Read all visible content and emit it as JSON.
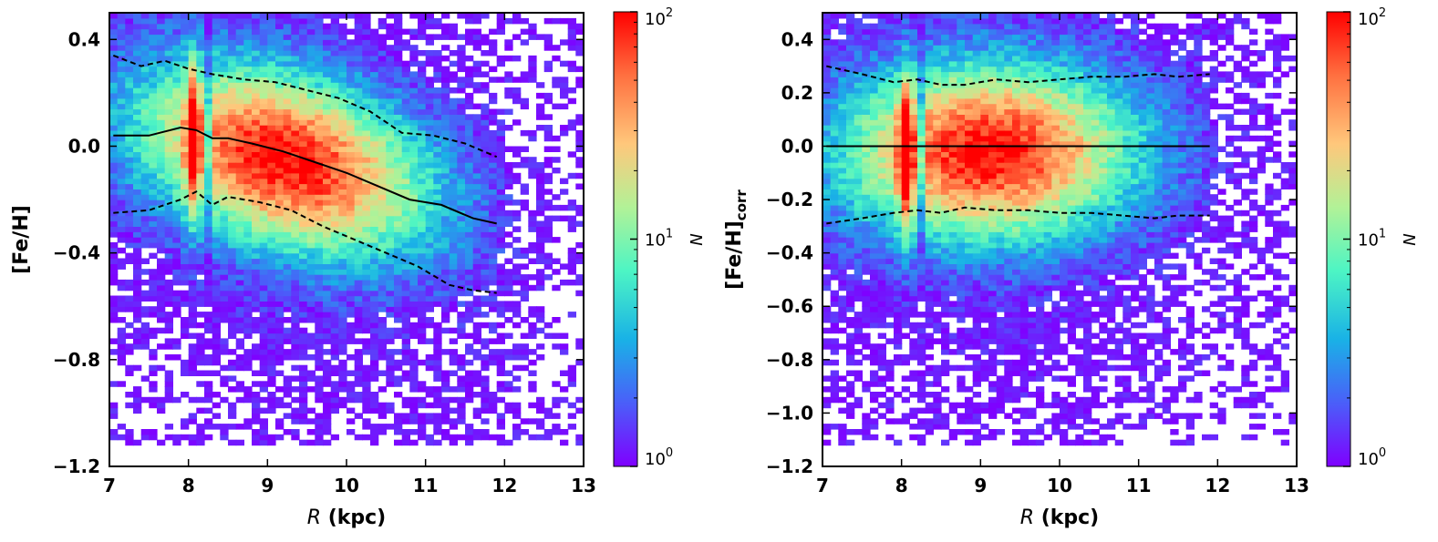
{
  "chart_data": [
    {
      "type": "heatmap",
      "xlabel": "R (kpc)",
      "xlabel_italic": "R",
      "xlabel_unit": " (kpc)",
      "ylabel": "[Fe/H]",
      "xlim": [
        7,
        13
      ],
      "ylim": [
        -1.2,
        0.5
      ],
      "xticks": [
        7,
        8,
        9,
        10,
        11,
        12,
        13
      ],
      "xtick_labels": [
        "7",
        "8",
        "9",
        "10",
        "11",
        "12",
        "13"
      ],
      "yticks": [
        -1.2,
        -0.8,
        -0.4,
        0.0,
        0.4
      ],
      "ytick_labels": [
        "−1.2",
        "−0.8",
        "−0.4",
        "0.0",
        "0.4"
      ],
      "colorbar": {
        "label": "N",
        "scale": "log",
        "range": [
          1,
          100
        ],
        "tick_labels": [
          "10",
          "10",
          "10"
        ],
        "tick_exponents": [
          "0",
          "1",
          "2"
        ],
        "colormap": "rainbow"
      },
      "density_peak": {
        "x": 9.2,
        "y": -0.05
      },
      "trend_slope": -0.07,
      "lines": [
        {
          "style": "solid",
          "role": "median",
          "x": [
            7.05,
            7.5,
            7.9,
            8.1,
            8.3,
            8.5,
            8.8,
            9.2,
            9.6,
            10.0,
            10.4,
            10.8,
            11.2,
            11.6,
            11.9
          ],
          "y": [
            0.04,
            0.04,
            0.07,
            0.06,
            0.03,
            0.03,
            0.01,
            -0.02,
            -0.06,
            -0.1,
            -0.15,
            -0.2,
            -0.22,
            -0.27,
            -0.29
          ]
        },
        {
          "style": "dashed",
          "role": "upper",
          "x": [
            7.05,
            7.4,
            7.7,
            8.0,
            8.3,
            8.7,
            9.1,
            9.5,
            9.9,
            10.3,
            10.7,
            11.1,
            11.5,
            11.9
          ],
          "y": [
            0.34,
            0.3,
            0.32,
            0.29,
            0.27,
            0.25,
            0.24,
            0.21,
            0.18,
            0.13,
            0.05,
            0.04,
            0.01,
            -0.04
          ]
        },
        {
          "style": "dashed",
          "role": "lower",
          "x": [
            7.05,
            7.5,
            7.9,
            8.1,
            8.3,
            8.5,
            8.9,
            9.3,
            9.7,
            10.1,
            10.5,
            10.9,
            11.3,
            11.6,
            11.9
          ],
          "y": [
            -0.25,
            -0.24,
            -0.2,
            -0.17,
            -0.22,
            -0.19,
            -0.21,
            -0.24,
            -0.3,
            -0.35,
            -0.4,
            -0.45,
            -0.52,
            -0.54,
            -0.55
          ]
        }
      ]
    },
    {
      "type": "heatmap",
      "xlabel": "R (kpc)",
      "xlabel_italic": "R",
      "xlabel_unit": " (kpc)",
      "ylabel": "[Fe/H]corr",
      "ylabel_main": "[Fe/H]",
      "ylabel_sub": "corr",
      "xlim": [
        7,
        13
      ],
      "ylim": [
        -1.2,
        0.5
      ],
      "xticks": [
        7,
        8,
        9,
        10,
        11,
        12,
        13
      ],
      "xtick_labels": [
        "7",
        "8",
        "9",
        "10",
        "11",
        "12",
        "13"
      ],
      "yticks": [
        -1.2,
        -1.0,
        -0.8,
        -0.6,
        -0.4,
        -0.2,
        0.0,
        0.2,
        0.4
      ],
      "ytick_labels": [
        "−1.2",
        "−1.0",
        "−0.8",
        "−0.6",
        "−0.4",
        "−0.2",
        "0.0",
        "0.2",
        "0.4"
      ],
      "colorbar": {
        "label": "N",
        "scale": "log",
        "range": [
          1,
          100
        ],
        "tick_labels": [
          "10",
          "10",
          "10"
        ],
        "tick_exponents": [
          "0",
          "1",
          "2"
        ],
        "colormap": "rainbow"
      },
      "density_peak": {
        "x": 9.1,
        "y": -0.02
      },
      "trend_slope": 0.0,
      "lines": [
        {
          "style": "solid",
          "role": "median",
          "x": [
            7.05,
            11.9
          ],
          "y": [
            0.0,
            0.0
          ]
        },
        {
          "style": "dashed",
          "role": "upper",
          "x": [
            7.05,
            7.5,
            7.9,
            8.2,
            8.5,
            8.8,
            9.2,
            9.6,
            10.0,
            10.4,
            10.8,
            11.2,
            11.5,
            11.9
          ],
          "y": [
            0.3,
            0.27,
            0.24,
            0.25,
            0.23,
            0.23,
            0.25,
            0.24,
            0.25,
            0.26,
            0.26,
            0.27,
            0.26,
            0.27
          ]
        },
        {
          "style": "dashed",
          "role": "lower",
          "x": [
            7.05,
            7.5,
            7.9,
            8.2,
            8.5,
            8.8,
            9.2,
            9.6,
            10.0,
            10.4,
            10.8,
            11.2,
            11.5,
            11.9
          ],
          "y": [
            -0.29,
            -0.27,
            -0.25,
            -0.24,
            -0.25,
            -0.23,
            -0.24,
            -0.24,
            -0.25,
            -0.25,
            -0.26,
            -0.27,
            -0.26,
            -0.26
          ]
        }
      ]
    }
  ]
}
